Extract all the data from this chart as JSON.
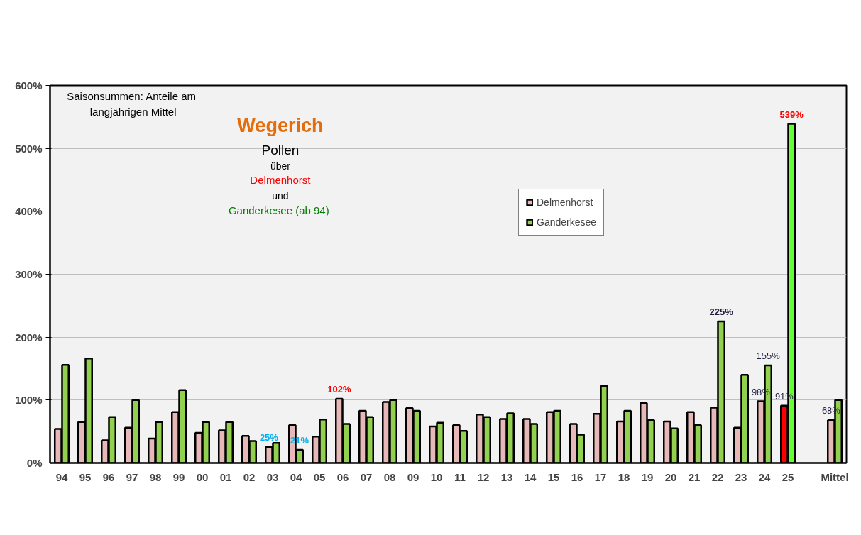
{
  "chart_data": {
    "type": "bar",
    "title": "Wegerich",
    "subtitle": "Pollen",
    "annotations": [
      "Saisonsummen:  Anteile am\nlangjährigen Mittel",
      "über",
      "Delmenhorst",
      "und",
      "Ganderkesee  (ab 94)"
    ],
    "categories": [
      "94",
      "95",
      "96",
      "97",
      "98",
      "99",
      "00",
      "01",
      "02",
      "03",
      "04",
      "05",
      "06",
      "07",
      "08",
      "09",
      "10",
      "11",
      "12",
      "13",
      "14",
      "15",
      "16",
      "17",
      "18",
      "19",
      "20",
      "21",
      "22",
      "23",
      "24",
      "25",
      null,
      "Mittel"
    ],
    "series": [
      {
        "name": "Delmenhorst",
        "color": "#e6b8b7",
        "colors": [
          null,
          null,
          null,
          null,
          null,
          null,
          null,
          null,
          null,
          null,
          null,
          null,
          null,
          null,
          null,
          null,
          null,
          null,
          null,
          null,
          null,
          null,
          null,
          null,
          null,
          null,
          null,
          null,
          null,
          null,
          null,
          "#ff0000",
          null,
          null
        ],
        "values": [
          54,
          65,
          36,
          56,
          39,
          81,
          48,
          52,
          43,
          25,
          60,
          42,
          102,
          83,
          97,
          87,
          58,
          60,
          77,
          70,
          70,
          81,
          62,
          78,
          66,
          95,
          66,
          81,
          88,
          56,
          98,
          91,
          null,
          68
        ],
        "value_labels": [
          null,
          null,
          null,
          null,
          null,
          null,
          null,
          null,
          null,
          "25%",
          null,
          null,
          "102%",
          null,
          null,
          null,
          null,
          null,
          null,
          null,
          null,
          null,
          null,
          null,
          null,
          null,
          null,
          null,
          null,
          null,
          "98%",
          "91%",
          null,
          "68%"
        ]
      },
      {
        "name": "Ganderkesee",
        "color": "#92d050",
        "colors": [
          null,
          null,
          null,
          null,
          null,
          null,
          null,
          null,
          null,
          null,
          null,
          null,
          null,
          null,
          null,
          null,
          null,
          null,
          null,
          null,
          null,
          null,
          null,
          null,
          null,
          null,
          null,
          null,
          null,
          null,
          null,
          "#66ff33",
          null,
          null
        ],
        "values": [
          156,
          166,
          73,
          100,
          65,
          116,
          65,
          65,
          35,
          32,
          21,
          69,
          62,
          73,
          100,
          83,
          64,
          51,
          73,
          79,
          62,
          83,
          45,
          122,
          83,
          68,
          55,
          60,
          225,
          140,
          155,
          539,
          null,
          100
        ],
        "value_labels": [
          null,
          null,
          null,
          null,
          null,
          null,
          null,
          null,
          null,
          null,
          "21%",
          null,
          null,
          null,
          null,
          null,
          null,
          null,
          null,
          null,
          null,
          null,
          null,
          null,
          null,
          null,
          null,
          null,
          "225%",
          null,
          "155%",
          "539%",
          null,
          null
        ]
      }
    ],
    "ylim": [
      0,
      600
    ],
    "yticks": [
      {
        "value": 0,
        "label": "0%"
      },
      {
        "value": 100,
        "label": "100%"
      },
      {
        "value": 200,
        "label": "200%"
      },
      {
        "value": 300,
        "label": "300%"
      },
      {
        "value": 400,
        "label": "400%"
      },
      {
        "value": 500,
        "label": "500%"
      },
      {
        "value": 600,
        "label": "600%"
      }
    ],
    "grid": "y",
    "legend": "top"
  }
}
